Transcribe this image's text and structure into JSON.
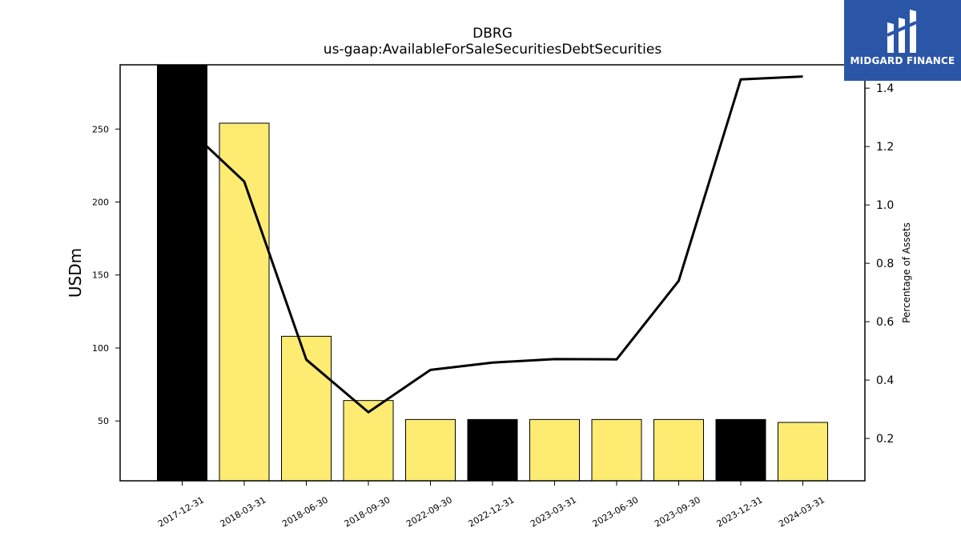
{
  "chart_data": {
    "type": "bar",
    "title": "DBRG",
    "subtitle": "us-gaap:AvailableForSaleSecuritiesDebtSecurities",
    "ylabel": "USDm",
    "y2label": "Percentage of Assets",
    "categories": [
      "2017-12-31",
      "2018-03-31",
      "2018-06-30",
      "2018-09-30",
      "2022-09-30",
      "2022-12-31",
      "2023-03-31",
      "2023-06-30",
      "2023-09-30",
      "2023-12-31",
      "2024-03-31"
    ],
    "bar_values": [
      294,
      254,
      108,
      64,
      51,
      51,
      51,
      51,
      51,
      51,
      49
    ],
    "bar_colors": [
      "#000000",
      "#fdeb72",
      "#fdeb72",
      "#fdeb72",
      "#fdeb72",
      "#000000",
      "#fdeb72",
      "#fdeb72",
      "#fdeb72",
      "#000000",
      "#fdeb72"
    ],
    "line_values": [
      1.28,
      1.08,
      0.47,
      0.29,
      0.435,
      0.46,
      0.472,
      0.471,
      0.74,
      1.43,
      1.44
    ],
    "ylim": [
      9,
      294
    ],
    "y2lim": [
      0.055,
      1.48
    ],
    "yticks": [
      50,
      100,
      150,
      200,
      250
    ],
    "y2ticks": [
      0.2,
      0.4,
      0.6,
      0.8,
      1.0,
      1.2,
      1.4
    ],
    "grid": false
  },
  "logo": {
    "text": "MIDGARD FINANCE",
    "color": "#2b56a8"
  }
}
